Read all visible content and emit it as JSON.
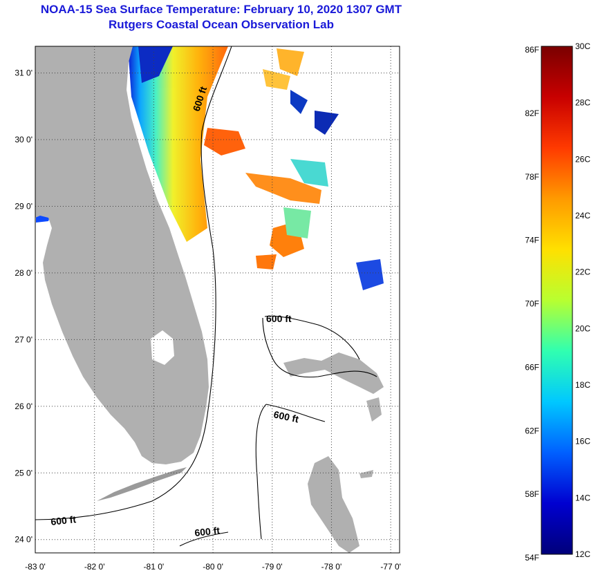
{
  "title": {
    "line1": "NOAA-15 Sea Surface Temperature:  February 10, 2020 1307 GMT",
    "line2": "Rutgers Coastal Ocean Observation Lab"
  },
  "map": {
    "lat_ticks": [
      "31 0'",
      "30 0'",
      "29 0'",
      "28 0'",
      "27 0'",
      "26 0'",
      "25 0'",
      "24 0'"
    ],
    "lon_ticks": [
      "-83 0'",
      "-82 0'",
      "-81 0'",
      "-80 0'",
      "-79 0'",
      "-78 0'",
      "-77 0'"
    ],
    "lat_values": [
      31,
      30,
      29,
      28,
      27,
      26,
      25,
      24
    ],
    "lon_values": [
      -83,
      -82,
      -81,
      -80,
      -79,
      -78,
      -77
    ],
    "lat_range": [
      23.8,
      31.4
    ],
    "lon_range": [
      -83,
      -76.85
    ],
    "contour_labels": [
      "600 ft",
      "600 ft",
      "600 ft",
      "600 ft",
      "600 ft"
    ],
    "colors": {
      "land": "#b0b0b0",
      "grid": "#404040",
      "contour": "#000000"
    }
  },
  "colorbar": {
    "fahrenheit": [
      "86F",
      "82F",
      "78F",
      "74F",
      "70F",
      "66F",
      "62F",
      "58F",
      "54F"
    ],
    "celsius": [
      "30C",
      "28C",
      "26C",
      "24C",
      "22C",
      "20C",
      "18C",
      "16C",
      "14C",
      "12C"
    ],
    "range_c": [
      12,
      30
    ],
    "gradient": [
      "#7a0000",
      "#c80000",
      "#ff3a00",
      "#ff9a00",
      "#ffe000",
      "#b8ff30",
      "#30ffb0",
      "#00c8ff",
      "#0060ff",
      "#0000d0",
      "#00007a"
    ]
  }
}
